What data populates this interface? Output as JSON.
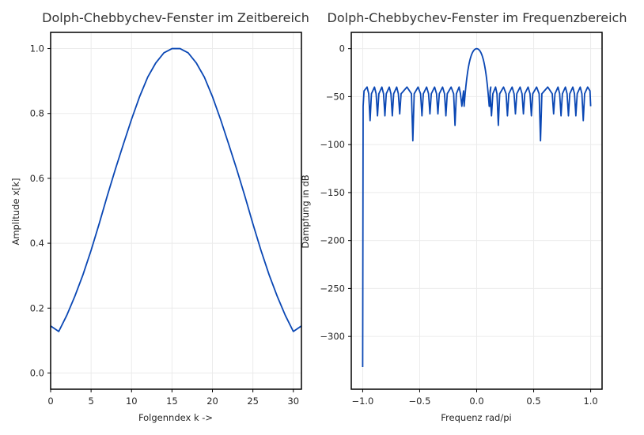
{
  "chart_data": [
    {
      "type": "line",
      "title": "Dolph-Chebbychev-Fenster im Zeitbereich",
      "xlabel": "Folgenndex k ->",
      "ylabel": "Amplitude x[k]",
      "xlim": [
        0,
        31
      ],
      "ylim": [
        -0.05,
        1.05
      ],
      "grid": true,
      "line_color": "#0a47b4",
      "xticks": [
        0,
        5,
        10,
        15,
        20,
        25,
        30
      ],
      "xtick_labels": [
        "0",
        "5",
        "10",
        "15",
        "20",
        "25",
        "30"
      ],
      "yticks": [
        0.0,
        0.2,
        0.4,
        0.6,
        0.8,
        1.0
      ],
      "ytick_labels": [
        "0.0",
        "0.2",
        "0.4",
        "0.6",
        "0.8",
        "1.0"
      ],
      "x": [
        0,
        1,
        2,
        3,
        4,
        5,
        6,
        7,
        8,
        9,
        10,
        11,
        12,
        13,
        14,
        15,
        16,
        17,
        18,
        19,
        20,
        21,
        22,
        23,
        24,
        25,
        26,
        27,
        28,
        29,
        30,
        31
      ],
      "values": [
        0.145,
        0.128,
        0.178,
        0.237,
        0.303,
        0.378,
        0.46,
        0.546,
        0.628,
        0.706,
        0.782,
        0.852,
        0.912,
        0.956,
        0.987,
        1.0,
        1.0,
        0.987,
        0.956,
        0.912,
        0.852,
        0.782,
        0.706,
        0.628,
        0.546,
        0.46,
        0.378,
        0.303,
        0.237,
        0.178,
        0.128,
        0.145
      ]
    },
    {
      "type": "line",
      "title": "Dolph-Chebbychev-Fenster im Frequenzbereich",
      "xlabel": "Frequenz rad/pi",
      "ylabel": "Dämpfung in dB",
      "xlim": [
        -1.1,
        1.1
      ],
      "ylim": [
        -355,
        17
      ],
      "grid": true,
      "line_color": "#0a47b4",
      "xticks": [
        -1.0,
        -0.5,
        0.0,
        0.5,
        1.0
      ],
      "xtick_labels": [
        "−1.0",
        "−0.5",
        "0.0",
        "0.5",
        "1.0"
      ],
      "yticks": [
        0,
        -50,
        -100,
        -150,
        -200,
        -250,
        -300
      ],
      "ytick_labels": [
        "0",
        "−50",
        "−100",
        "−150",
        "−200",
        "−250",
        "−300"
      ],
      "sidelobe_level_db": -40,
      "mainlobe_edge": 0.11,
      "x_first": -1.0,
      "x_last": 1.0,
      "edge_values": [
        -332,
        -60
      ],
      "nulls": [
        {
          "x": -0.935,
          "db": -75
        },
        {
          "x": -0.87,
          "db": -70
        },
        {
          "x": -0.805,
          "db": -70
        },
        {
          "x": -0.74,
          "db": -70
        },
        {
          "x": -0.675,
          "db": -68
        },
        {
          "x": -0.56,
          "db": -96
        },
        {
          "x": -0.48,
          "db": -70
        },
        {
          "x": -0.41,
          "db": -68
        },
        {
          "x": -0.34,
          "db": -68
        },
        {
          "x": -0.27,
          "db": -70
        },
        {
          "x": -0.19,
          "db": -80
        },
        {
          "x": -0.13,
          "db": -60
        },
        {
          "x": 0.13,
          "db": -70
        },
        {
          "x": 0.19,
          "db": -80
        },
        {
          "x": 0.27,
          "db": -70
        },
        {
          "x": 0.34,
          "db": -68
        },
        {
          "x": 0.41,
          "db": -68
        },
        {
          "x": 0.48,
          "db": -70
        },
        {
          "x": 0.56,
          "db": -96
        },
        {
          "x": 0.675,
          "db": -68
        },
        {
          "x": 0.74,
          "db": -70
        },
        {
          "x": 0.805,
          "db": -70
        },
        {
          "x": 0.87,
          "db": -70
        },
        {
          "x": 0.935,
          "db": -75
        }
      ]
    }
  ]
}
